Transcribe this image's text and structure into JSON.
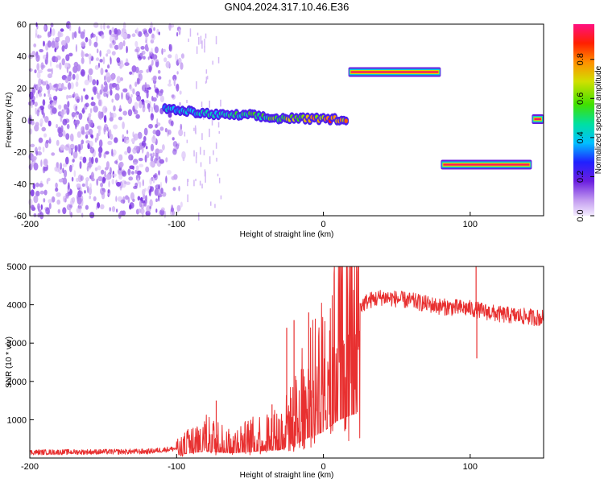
{
  "title": "GN04.2024.317.10.46.E36",
  "chart_data": [
    {
      "type": "heatmap",
      "xlabel": "Height of straight line (km)",
      "ylabel": "Frequency (Hz)",
      "xlim": [
        -200,
        150
      ],
      "ylim": [
        -60,
        60
      ],
      "xticks": [
        "-200",
        "-100",
        "0",
        "100"
      ],
      "xtick_values": [
        -200,
        -100,
        0,
        100
      ],
      "yticks": [
        "-60",
        "-40",
        "-20",
        "0",
        "20",
        "40",
        "60"
      ],
      "ytick_values": [
        -60,
        -40,
        -20,
        0,
        20,
        40,
        60
      ],
      "colorbar_label": "Normalized spectral amplitude",
      "colorbar_ticks": [
        "0.0",
        "0.2",
        "0.4",
        "0.6",
        "0.8"
      ],
      "colorbar_tick_values": [
        0.0,
        0.2,
        0.4,
        0.6,
        0.8
      ],
      "colorbar_range": [
        0,
        0.98
      ],
      "noise_region": {
        "x": [
          -200,
          -95
        ],
        "amplitude": 0.1
      },
      "tracks": [
        {
          "x": [
            -108,
            -90,
            -70,
            -50,
            -35,
            -20,
            0,
            17
          ],
          "y": [
            7,
            5,
            3,
            3,
            1,
            1,
            0.5,
            0.5
          ],
          "amplitude": [
            0.4,
            0.45,
            0.5,
            0.55,
            0.6,
            0.7,
            0.85,
            0.9
          ]
        },
        {
          "x": [
            17,
            80
          ],
          "y": [
            30,
            30
          ],
          "amplitude": [
            0.97,
            0.97
          ]
        },
        {
          "x": [
            80,
            142
          ],
          "y": [
            -28,
            -28
          ],
          "amplitude": [
            0.97,
            0.97
          ]
        },
        {
          "x": [
            142,
            150
          ],
          "y": [
            0.5,
            0.5
          ],
          "amplitude": [
            0.97,
            0.97
          ]
        }
      ]
    },
    {
      "type": "line",
      "xlabel": "Height of straight line (km)",
      "ylabel": "SNR (10 * v/v)",
      "xlim": [
        -200,
        150
      ],
      "ylim": [
        0,
        5000
      ],
      "xticks": [
        "-200",
        "-100",
        "0",
        "100"
      ],
      "xtick_values": [
        -200,
        -100,
        0,
        100
      ],
      "yticks": [
        "1000",
        "2000",
        "3000",
        "4000",
        "5000"
      ],
      "ytick_values": [
        1000,
        2000,
        3000,
        4000,
        5000
      ],
      "color": "#e83030",
      "envelope": {
        "x": [
          -200,
          -120,
          -100,
          -90,
          -80,
          -70,
          -60,
          -50,
          -40,
          -30,
          -20,
          -15,
          -10,
          -5,
          0,
          5,
          10,
          20,
          30,
          40,
          50,
          60,
          80,
          100,
          120,
          150
        ],
        "y": [
          150,
          170,
          250,
          450,
          600,
          500,
          450,
          550,
          650,
          700,
          1100,
          1500,
          1800,
          2000,
          2300,
          2800,
          3300,
          3800,
          4100,
          4200,
          4150,
          4100,
          3950,
          3900,
          3750,
          3650
        ]
      },
      "spikes": [
        {
          "x": -73,
          "y": 1500
        },
        {
          "x": -35,
          "y": 1400
        },
        {
          "x": -25,
          "y": 3400
        },
        {
          "x": -20,
          "y": 3600
        },
        {
          "x": -10,
          "y": 3800
        },
        {
          "x": 104,
          "y": 5000
        },
        {
          "x": 104.5,
          "y": 2600
        }
      ]
    }
  ]
}
